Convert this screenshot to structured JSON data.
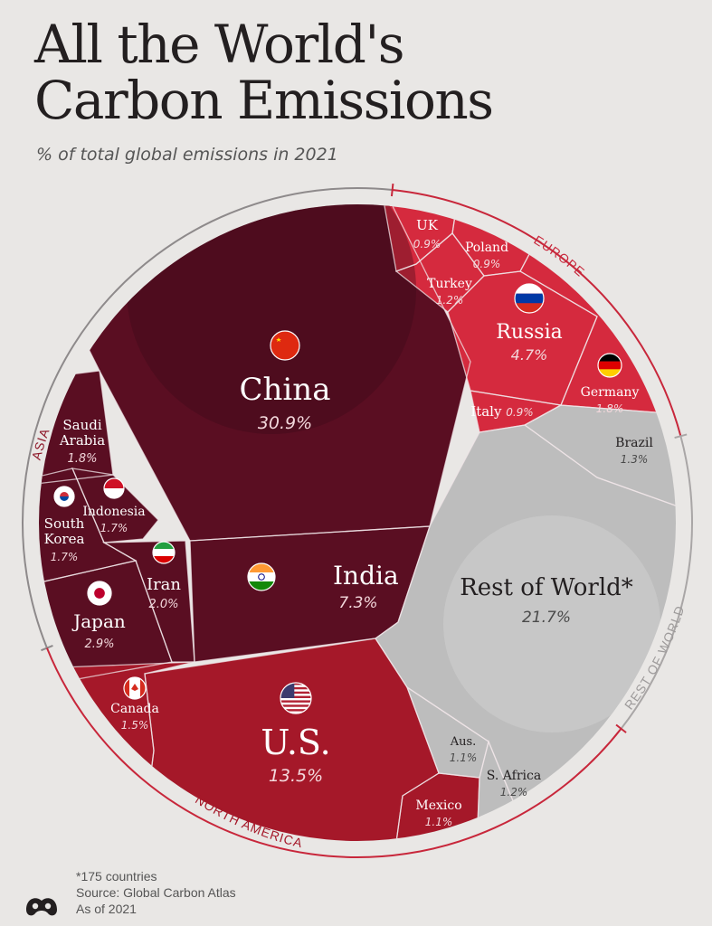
{
  "title_line1": "All the World's",
  "title_line2": "Carbon Emissions",
  "subtitle": "% of total global emissions in 2021",
  "footnote": "*175 countries",
  "source": "Source: Global Carbon Atlas",
  "as_of": "As of 2021",
  "chart_data": {
    "type": "voronoi-treemap",
    "unit": "% of total global emissions",
    "regions": [
      {
        "name": "ASIA",
        "color": "#5a0e22"
      },
      {
        "name": "EUROPE",
        "color": "#d52a3e"
      },
      {
        "name": "REST OF WORLD",
        "color": "#bdbdbd"
      },
      {
        "name": "NORTH AMERICA",
        "color": "#a51829"
      }
    ],
    "cells": [
      {
        "name": "China",
        "value": 30.9,
        "label": "30.9%",
        "region": "ASIA",
        "icon": "china-flag-icon"
      },
      {
        "name": "India",
        "value": 7.3,
        "label": "7.3%",
        "region": "ASIA",
        "icon": "india-flag-icon"
      },
      {
        "name": "Japan",
        "value": 2.9,
        "label": "2.9%",
        "region": "ASIA",
        "icon": "japan-flag-icon"
      },
      {
        "name": "Iran",
        "value": 2.0,
        "label": "2.0%",
        "region": "ASIA",
        "icon": "iran-flag-icon"
      },
      {
        "name": "Saudi Arabia",
        "value": 1.8,
        "label": "1.8%",
        "region": "ASIA"
      },
      {
        "name": "Indonesia",
        "value": 1.7,
        "label": "1.7%",
        "region": "ASIA",
        "icon": "indonesia-flag-icon"
      },
      {
        "name": "South Korea",
        "value": 1.7,
        "label": "1.7%",
        "region": "ASIA",
        "icon": "south-korea-flag-icon"
      },
      {
        "name": "UK",
        "value": 0.9,
        "label": "0.9%",
        "region": "EUROPE"
      },
      {
        "name": "Poland",
        "value": 0.9,
        "label": "0.9%",
        "region": "EUROPE"
      },
      {
        "name": "Turkey",
        "value": 1.2,
        "label": "1.2%",
        "region": "EUROPE"
      },
      {
        "name": "Russia",
        "value": 4.7,
        "label": "4.7%",
        "region": "EUROPE",
        "icon": "russia-flag-icon"
      },
      {
        "name": "Germany",
        "value": 1.8,
        "label": "1.8%",
        "region": "EUROPE",
        "icon": "germany-flag-icon"
      },
      {
        "name": "Italy",
        "value": 0.9,
        "label": "0.9%",
        "region": "EUROPE"
      },
      {
        "name": "Brazil",
        "value": 1.3,
        "label": "1.3%",
        "region": "REST OF WORLD"
      },
      {
        "name": "Rest of World*",
        "value": 21.7,
        "label": "21.7%",
        "region": "REST OF WORLD"
      },
      {
        "name": "Aus.",
        "value": 1.1,
        "label": "1.1%",
        "region": "REST OF WORLD"
      },
      {
        "name": "S. Africa",
        "value": 1.2,
        "label": "1.2%",
        "region": "REST OF WORLD"
      },
      {
        "name": "Mexico",
        "value": 1.1,
        "label": "1.1%",
        "region": "NORTH AMERICA"
      },
      {
        "name": "U.S.",
        "value": 13.5,
        "label": "13.5%",
        "region": "NORTH AMERICA",
        "icon": "usa-flag-icon"
      },
      {
        "name": "Canada",
        "value": 1.5,
        "label": "1.5%",
        "region": "NORTH AMERICA",
        "icon": "canada-flag-icon"
      }
    ]
  }
}
